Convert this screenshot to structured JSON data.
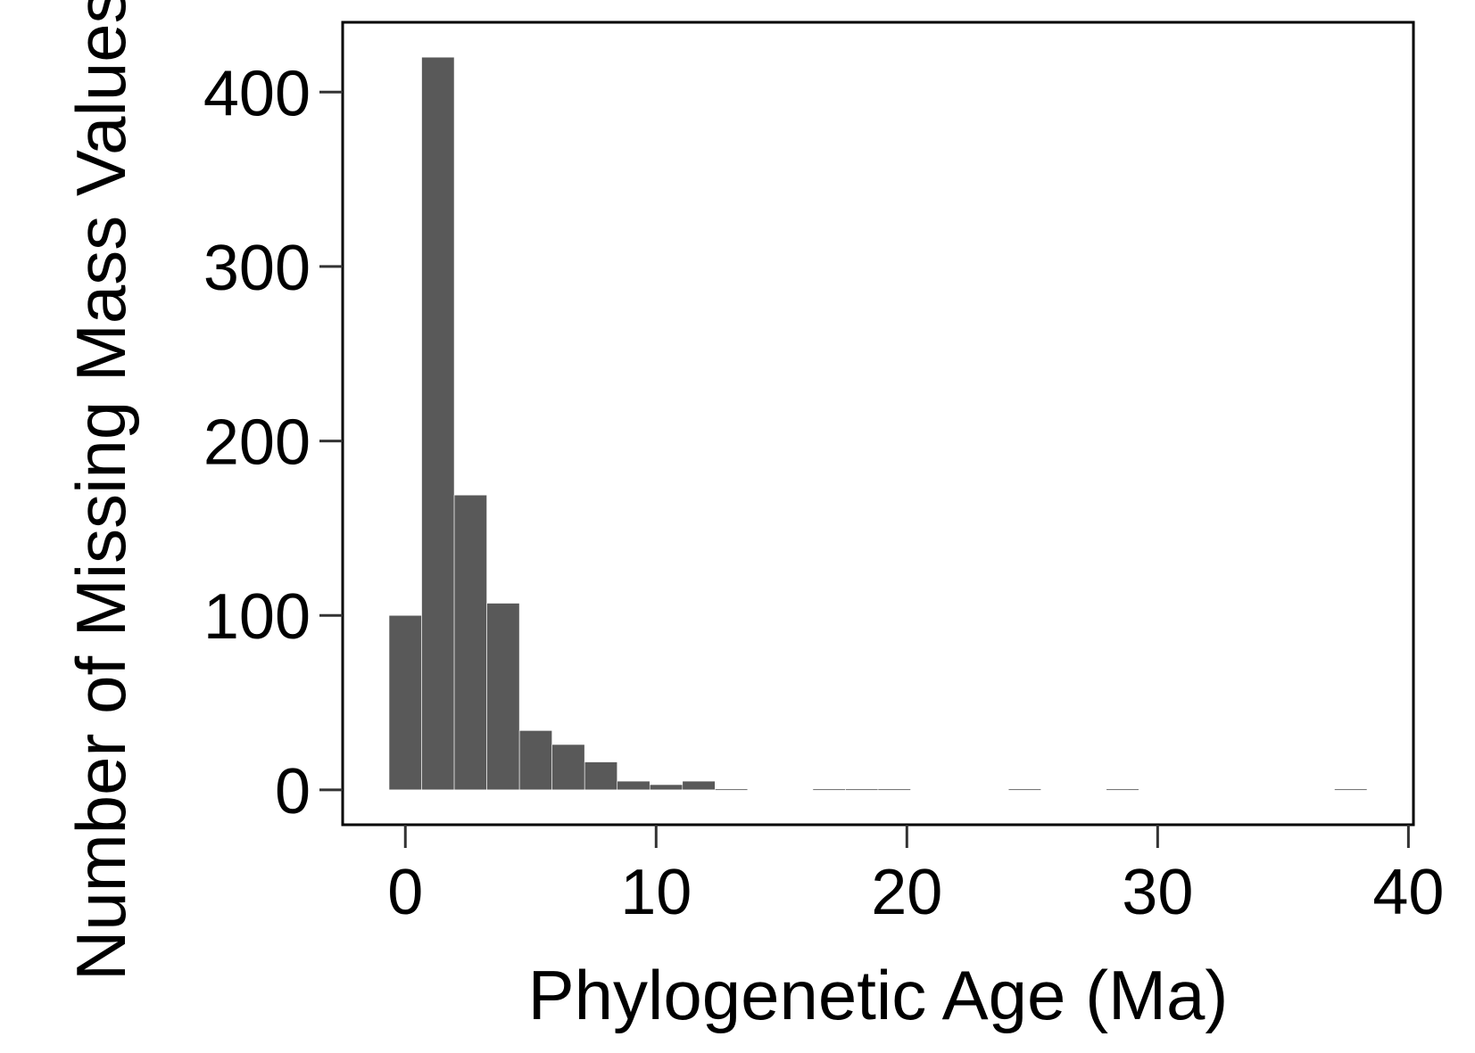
{
  "chart_data": {
    "type": "bar",
    "title": "",
    "xlabel": "Phylogenetic Age (Ma)",
    "ylabel": "Number of Missing Mass Values",
    "xlim": [
      -2.5,
      40.2
    ],
    "ylim": [
      -20,
      440
    ],
    "xticks": [
      0,
      10,
      20,
      30,
      40
    ],
    "yticks": [
      0,
      100,
      200,
      300,
      400
    ],
    "grid": false,
    "colors": {
      "bar": "#595959",
      "frame": "#000000",
      "tick": "#333333"
    },
    "bin_width": 1.3,
    "bins": [
      {
        "start": -0.65,
        "value": 100
      },
      {
        "start": 0.65,
        "value": 420
      },
      {
        "start": 1.95,
        "value": 169
      },
      {
        "start": 3.25,
        "value": 107
      },
      {
        "start": 4.55,
        "value": 34
      },
      {
        "start": 5.85,
        "value": 26
      },
      {
        "start": 7.15,
        "value": 16
      },
      {
        "start": 8.45,
        "value": 5
      },
      {
        "start": 9.75,
        "value": 3
      },
      {
        "start": 11.05,
        "value": 5
      },
      {
        "start": 12.35,
        "value": 0.5
      },
      {
        "start": 16.25,
        "value": 0.5
      },
      {
        "start": 17.55,
        "value": 0.5
      },
      {
        "start": 18.85,
        "value": 0.5
      },
      {
        "start": 24.05,
        "value": 0.5
      },
      {
        "start": 27.95,
        "value": 0.5
      },
      {
        "start": 37.05,
        "value": 0.5
      }
    ]
  }
}
